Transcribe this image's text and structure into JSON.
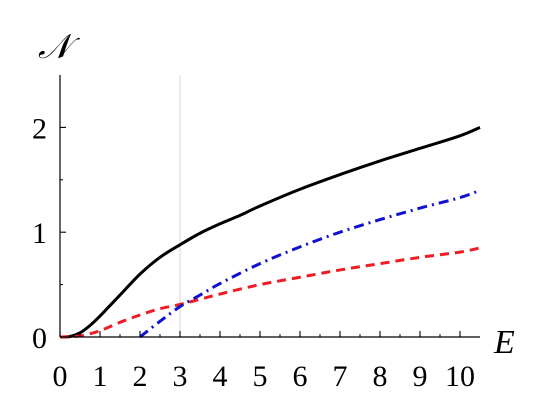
{
  "chart_data": {
    "type": "line",
    "title": "",
    "xlabel": "E",
    "ylabel": "𝒩",
    "xlim": [
      0,
      10.5
    ],
    "ylim": [
      0,
      2.5
    ],
    "x_ticks": [
      0,
      1,
      2,
      3,
      4,
      5,
      6,
      7,
      8,
      9,
      10
    ],
    "x_tick_labels": [
      "0",
      "1",
      "2",
      "3",
      "4",
      "5",
      "6",
      "7",
      "8",
      "9",
      "10"
    ],
    "y_ticks": [
      0,
      1,
      2
    ],
    "y_tick_labels": [
      "0",
      "1",
      "2"
    ],
    "grid": false,
    "reference_line_x": 3,
    "series": [
      {
        "style": "solid",
        "color": "#000000",
        "x": [
          0,
          0.25,
          0.5,
          0.75,
          1,
          1.25,
          1.5,
          2,
          2.5,
          3,
          3.5,
          4,
          4.5,
          5,
          6,
          7,
          8,
          9,
          10,
          10.5
        ],
        "y": [
          0,
          0.005,
          0.04,
          0.11,
          0.2,
          0.3,
          0.4,
          0.6,
          0.76,
          0.88,
          0.99,
          1.08,
          1.16,
          1.25,
          1.41,
          1.55,
          1.68,
          1.8,
          1.92,
          2.0
        ]
      },
      {
        "style": "dashed",
        "color": "#ee1c24",
        "x": [
          0,
          0.5,
          1,
          1.5,
          2,
          2.5,
          3,
          3.5,
          4,
          5,
          6,
          7,
          8,
          9,
          10,
          10.5
        ],
        "y": [
          0,
          0.01,
          0.06,
          0.14,
          0.21,
          0.27,
          0.31,
          0.36,
          0.41,
          0.5,
          0.57,
          0.64,
          0.7,
          0.76,
          0.81,
          0.85
        ]
      },
      {
        "style": "dash-dot",
        "color": "#1010d0",
        "x": [
          2,
          2.5,
          3,
          3.5,
          4,
          5,
          6,
          7,
          8,
          9,
          10,
          10.5
        ],
        "y": [
          0,
          0.15,
          0.29,
          0.4,
          0.51,
          0.7,
          0.86,
          1.0,
          1.12,
          1.23,
          1.33,
          1.4
        ]
      }
    ]
  }
}
